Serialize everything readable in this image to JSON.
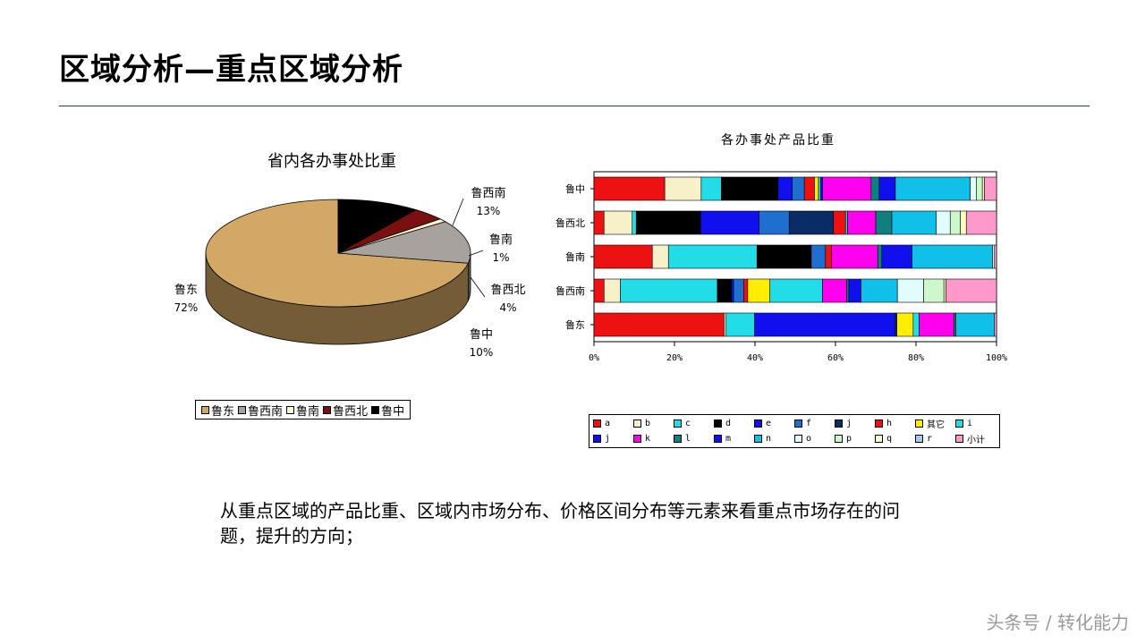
{
  "slide": {
    "title": "区域分析—重点区域分析",
    "body_text": "从重点区域的产品比重、区域内市场分布、价格区间分布等元素来看重点市场存在的问题，提升的方向；",
    "watermark": "头条号 / 转化能力"
  },
  "chart_data": [
    {
      "type": "pie",
      "title": "省内各办事处比重",
      "labels": [
        "鲁东",
        "鲁西南",
        "鲁南",
        "鲁西北",
        "鲁中"
      ],
      "values": [
        72,
        13,
        1,
        4,
        10
      ],
      "value_labels": [
        "72%",
        "13%",
        "1%",
        "4%",
        "10%"
      ],
      "colors": [
        "#d2a864",
        "#a8a29e",
        "#fff7d0",
        "#7a1010",
        "#000000"
      ],
      "legend": "bottom"
    },
    {
      "type": "bar",
      "orientation": "horizontal",
      "stacked": "percent",
      "title": "各办事处产品比重",
      "categories": [
        "鲁中",
        "鲁西北",
        "鲁南",
        "鲁西南",
        "鲁东"
      ],
      "x_ticks": [
        "0%",
        "20%",
        "40%",
        "60%",
        "80%",
        "100%"
      ],
      "xlim": [
        0,
        100
      ],
      "legend": "bottom",
      "series": [
        {
          "name": "a",
          "color": "#ee1111",
          "values": [
            17.5,
            2.5,
            14.5,
            2.5,
            32
          ]
        },
        {
          "name": "b",
          "color": "#f8f0c8",
          "values": [
            9,
            7,
            4,
            4,
            0.5
          ]
        },
        {
          "name": "c",
          "color": "#22dde8",
          "values": [
            5,
            1,
            22,
            24,
            7
          ]
        },
        {
          "name": "d",
          "color": "#000000",
          "values": [
            14,
            16,
            13.5,
            3.5,
            0
          ]
        },
        {
          "name": "e",
          "color": "#1010ee",
          "values": [
            3.5,
            14.5,
            0,
            0.5,
            34.5
          ]
        },
        {
          "name": "f",
          "color": "#1f6fd0",
          "values": [
            3,
            7.5,
            3.5,
            2.5,
            0
          ]
        },
        {
          "name": "j",
          "color": "#0a2c66",
          "values": [
            0,
            11,
            0,
            0,
            0.5
          ]
        },
        {
          "name": "h",
          "color": "#ee1111",
          "values": [
            2.5,
            3,
            1.5,
            1,
            0
          ]
        },
        {
          "name": "其它",
          "color": "#ffee00",
          "values": [
            1,
            0,
            0,
            5.5,
            4
          ]
        },
        {
          "name": "i",
          "color": "#22dde8",
          "values": [
            0.5,
            0.5,
            0,
            13,
            1.5
          ]
        },
        {
          "name": "j",
          "color": "#1010ee",
          "values": [
            0.5,
            0,
            0,
            0,
            0
          ]
        },
        {
          "name": "k",
          "color": "#ff00ee",
          "values": [
            12,
            7,
            11.5,
            6,
            8.5
          ]
        },
        {
          "name": "l",
          "color": "#0f7f7f",
          "values": [
            2,
            4,
            1,
            0.5,
            0.5
          ]
        },
        {
          "name": "m",
          "color": "#1010ee",
          "values": [
            4,
            0,
            7.5,
            3,
            0
          ]
        },
        {
          "name": "n",
          "color": "#10c0e8",
          "values": [
            18.5,
            11,
            20,
            9,
            9.5
          ]
        },
        {
          "name": "o",
          "color": "#e0fcfc",
          "values": [
            1.5,
            3.5,
            0.5,
            6.5,
            0
          ]
        },
        {
          "name": "p",
          "color": "#ccf8cc",
          "values": [
            1.5,
            2.5,
            0,
            5,
            0
          ]
        },
        {
          "name": "q",
          "color": "#fcfcc0",
          "values": [
            0.5,
            1.5,
            0,
            0.5,
            0
          ]
        },
        {
          "name": "r",
          "color": "#a8c8f0",
          "values": [
            0,
            0,
            0,
            0,
            0
          ]
        },
        {
          "name": "小计",
          "color": "#ff99cc",
          "values": [
            3,
            7.5,
            0.5,
            12.5,
            0.5
          ]
        }
      ]
    }
  ]
}
